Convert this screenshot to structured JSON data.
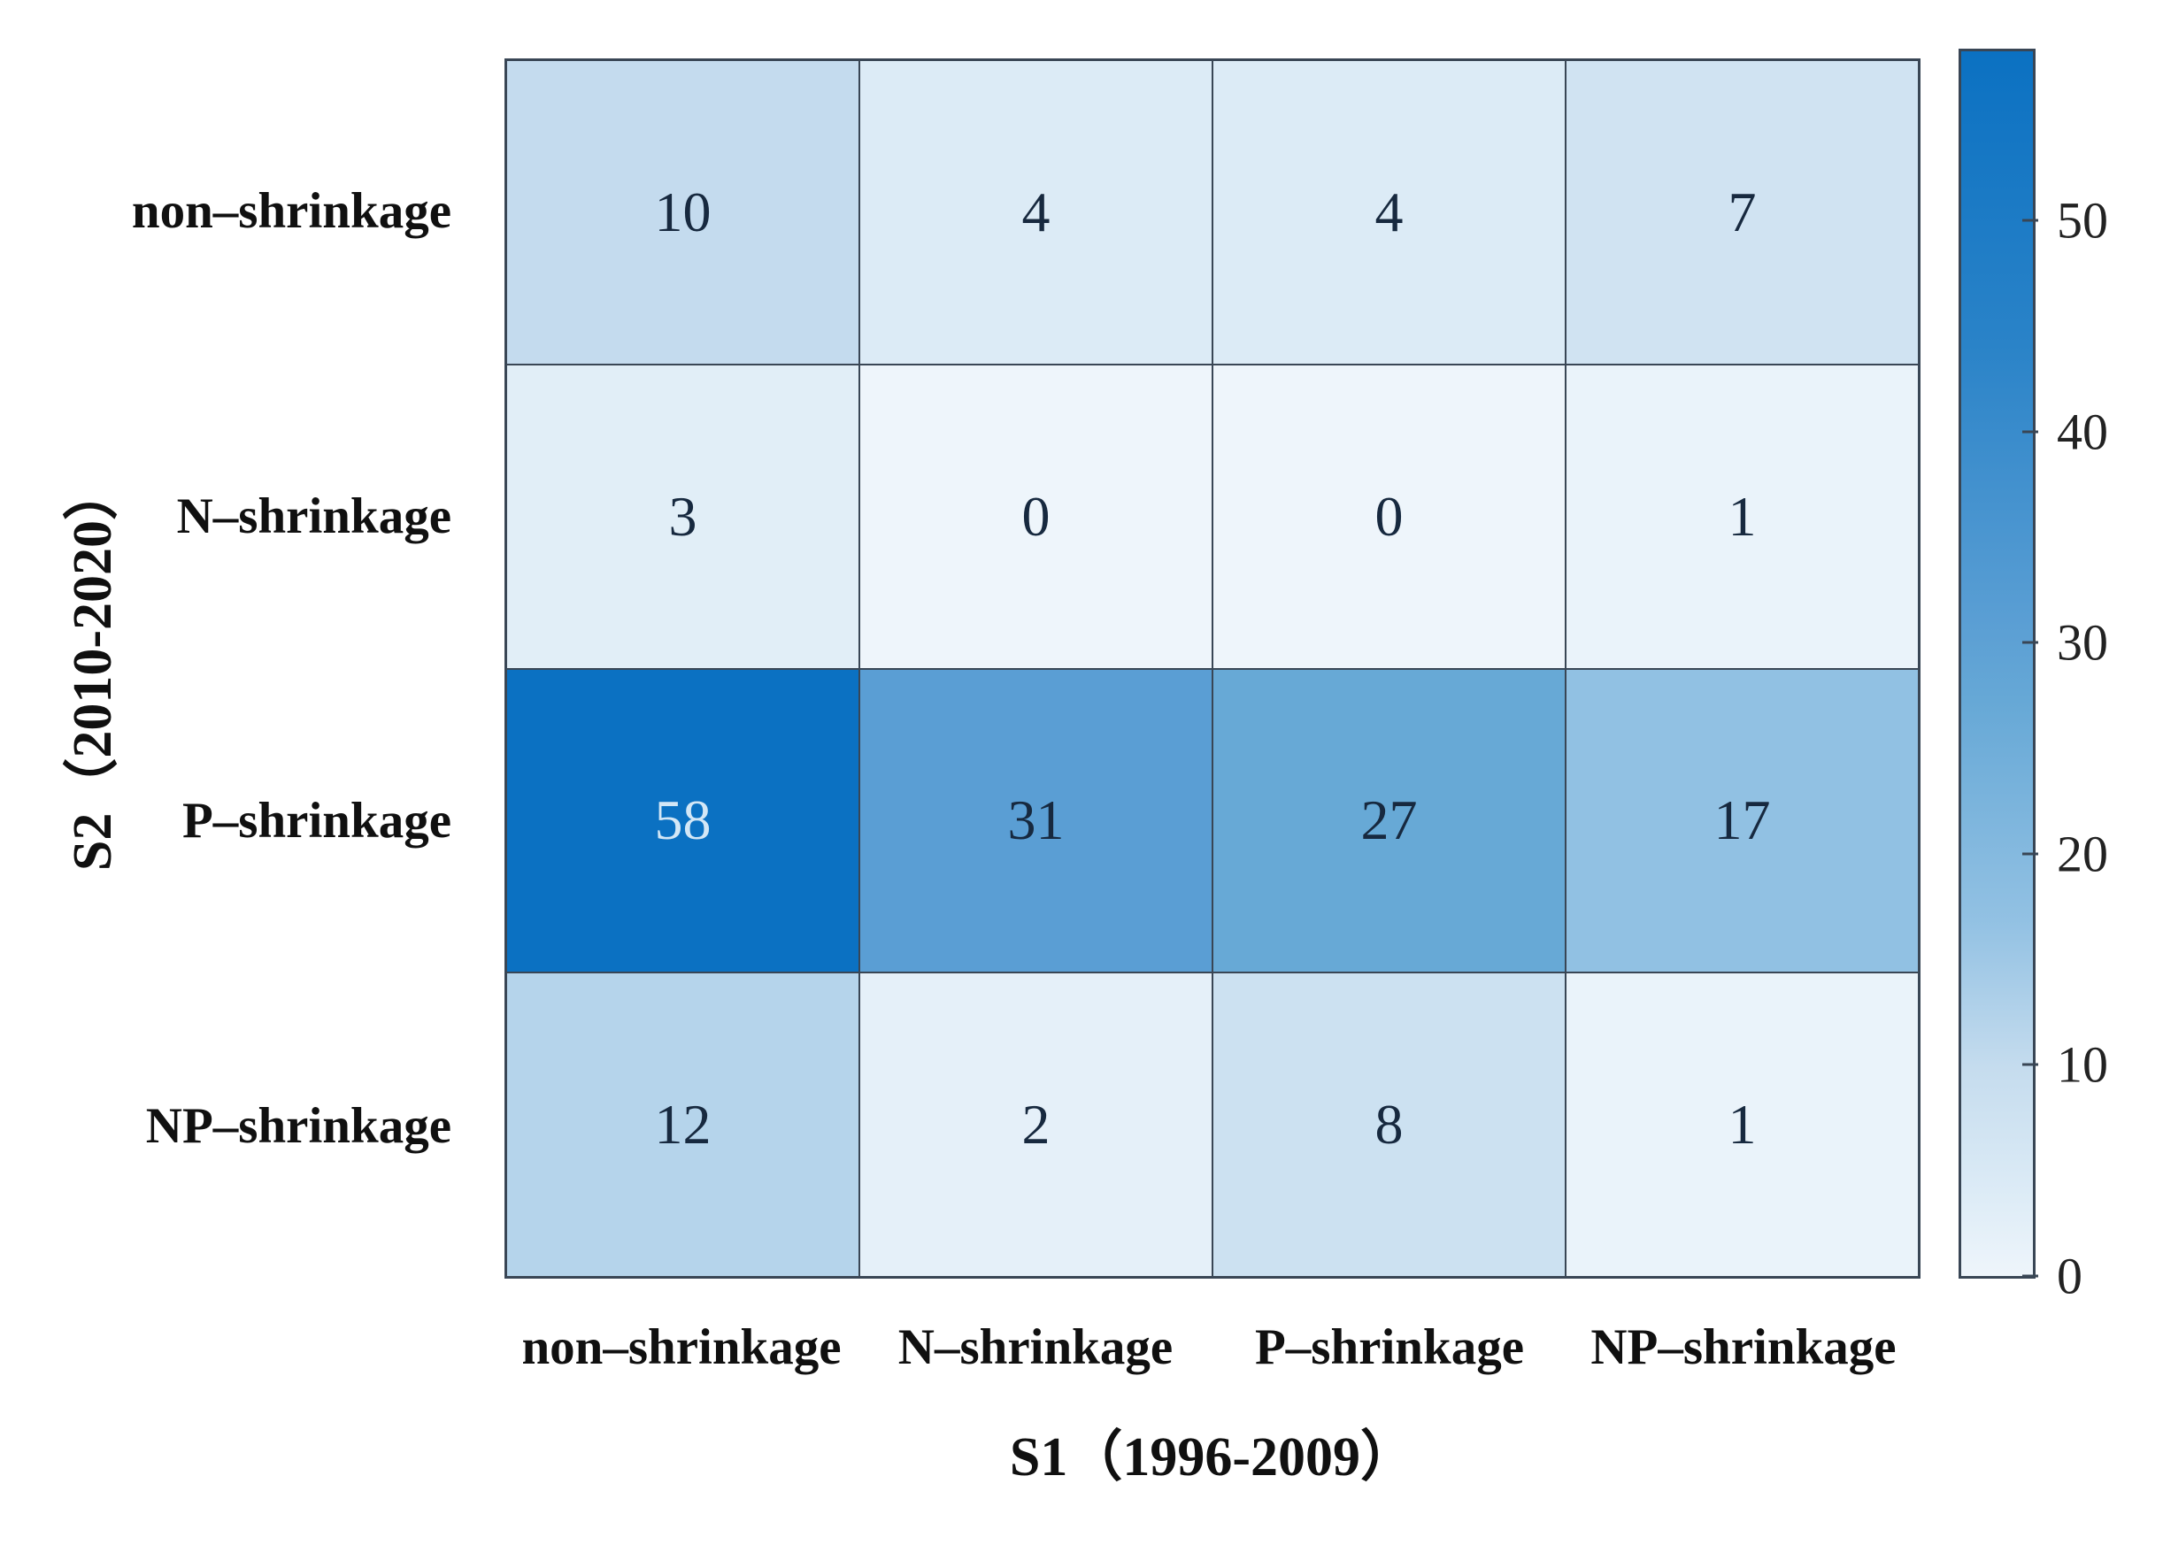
{
  "figure": {
    "background": "#ffffff",
    "grid_line_color": "#394655"
  },
  "chart_data": {
    "type": "heatmap",
    "title": "",
    "xlabel": "S1（1996-2009）",
    "ylabel": "S2（2010-2020）",
    "x_categories": [
      "non–shrinkage",
      "N–shrinkage",
      "P–shrinkage",
      "NP–shrinkage"
    ],
    "y_categories": [
      "non–shrinkage",
      "N–shrinkage",
      "P–shrinkage",
      "NP–shrinkage"
    ],
    "values": [
      [
        10,
        4,
        4,
        7
      ],
      [
        3,
        0,
        0,
        1
      ],
      [
        58,
        31,
        27,
        17
      ],
      [
        12,
        2,
        8,
        1
      ]
    ],
    "vmin": 0,
    "vmax": 58,
    "grid": "on",
    "colorbar": {
      "position": "right",
      "ticks": [
        0,
        10,
        20,
        30,
        40,
        50
      ]
    },
    "colormap_stops": [
      {
        "t": 0.0,
        "color": "#eef5fb"
      },
      {
        "t": 0.07,
        "color": "#dcebf6"
      },
      {
        "t": 0.17,
        "color": "#c5dcee"
      },
      {
        "t": 0.29,
        "color": "#92c1e3"
      },
      {
        "t": 0.47,
        "color": "#66a8d6"
      },
      {
        "t": 0.53,
        "color": "#5b9fd4"
      },
      {
        "t": 0.76,
        "color": "#2a83c8"
      },
      {
        "t": 1.0,
        "color": "#0b71c2"
      }
    ],
    "cell_text_color_dark": "#17293f",
    "cell_text_color_light": "#d3e7f6",
    "light_text_threshold": 45,
    "tick_label_color": "#222222"
  }
}
